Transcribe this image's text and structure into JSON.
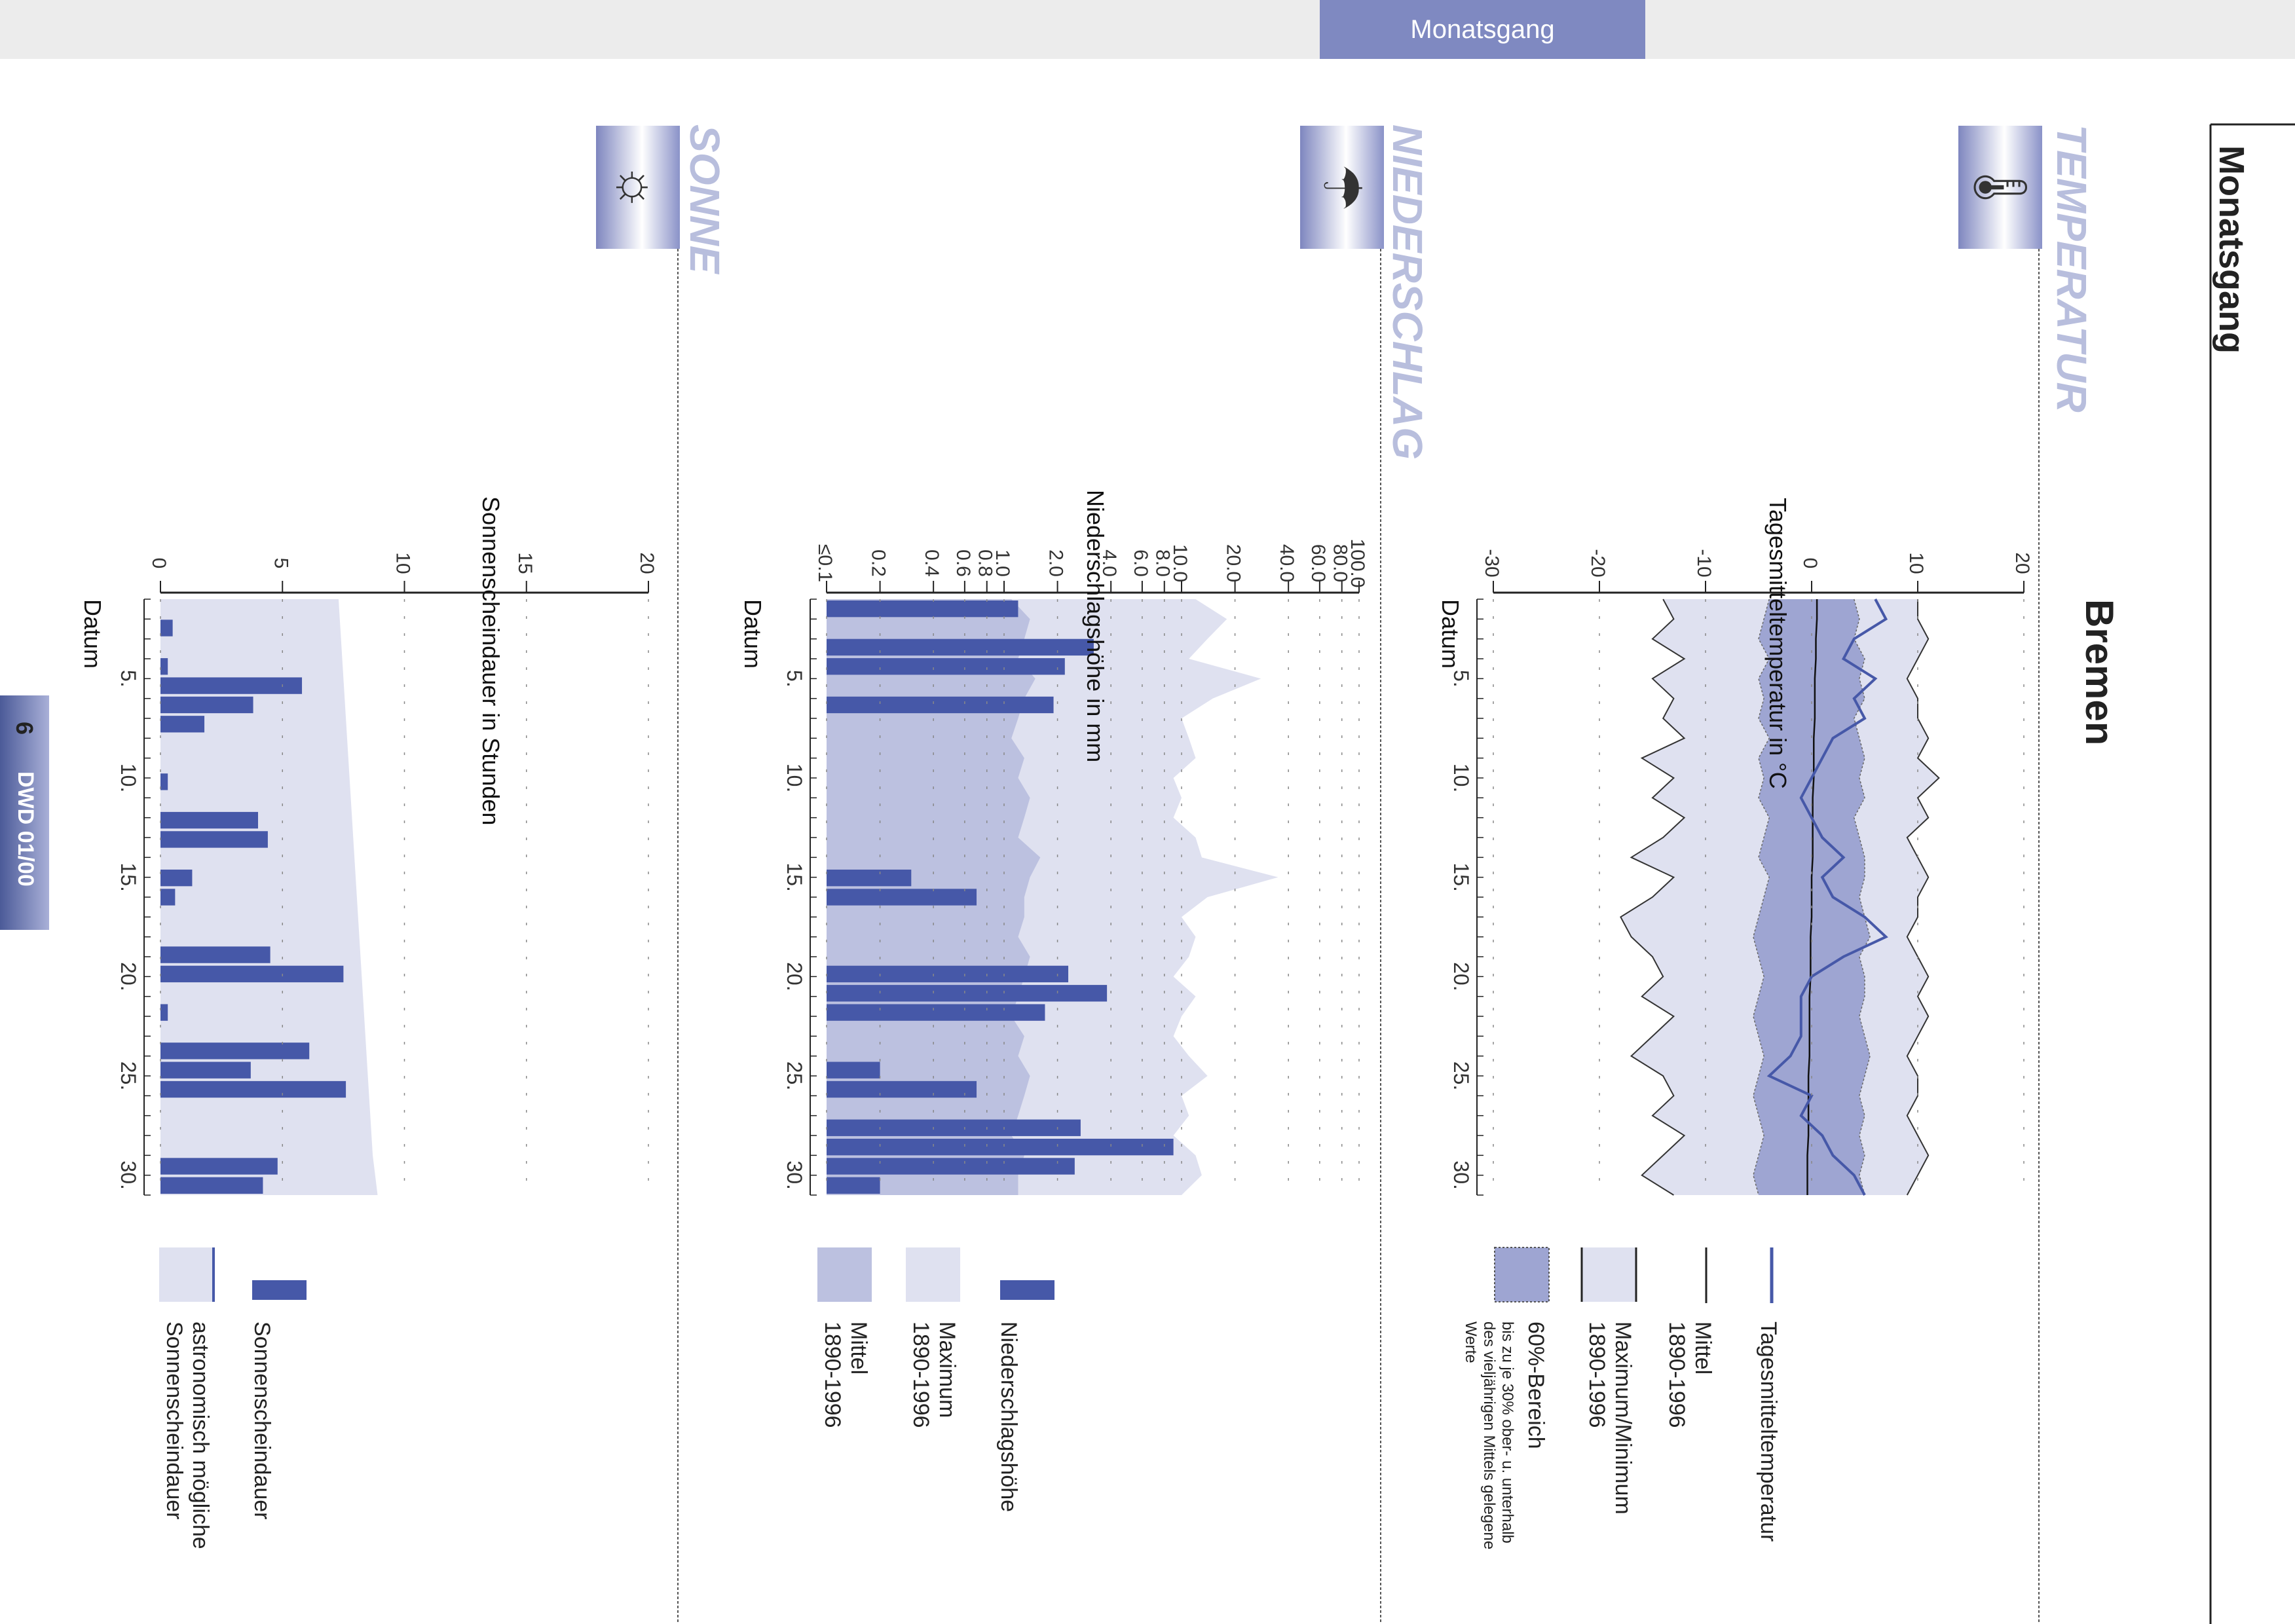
{
  "header": {
    "tab": "Monatsgang"
  },
  "page": {
    "title": "Monatsgang",
    "station": "Bremen"
  },
  "footer": {
    "page_number": "6",
    "label": "DWD  01/00"
  },
  "colors": {
    "series_dark": "#4658a8",
    "band_light": "#dfe1f0",
    "band_mid": "#bcc1e0",
    "band_dark": "#9ea5d2",
    "tab": "#7f89c1",
    "section_title": "#b8bedd"
  },
  "sections": {
    "temperatur": {
      "title": "TEMPERATUR",
      "icon": "thermometer-icon",
      "ylabel": "Tagesmitteltemperatur in °C",
      "xlabel": "Datum",
      "legend": {
        "tagesmittel": "Tagesmitteltemperatur",
        "mittel": "Mittel",
        "mittel_years": "1890-1996",
        "maxmin": "Maximum/Minimum",
        "maxmin_years": "1890-1996",
        "band": "60%-Bereich",
        "band_note1": "bis zu je 30% ober- u. unterhalb",
        "band_note2": "des vieljährigen Mittels gelegene",
        "band_note3": "Werte"
      }
    },
    "niederschlag": {
      "title": "NIEDERSCHLAG",
      "icon": "rain-cloud-icon",
      "ylabel": "Niederschlagshöhe in mm",
      "xlabel": "Datum",
      "legend": {
        "hoehe": "Niederschlagshöhe",
        "maximum": "Maximum",
        "maximum_years": "1890-1996",
        "mittel": "Mittel",
        "mittel_years": "1890-1996"
      }
    },
    "sonne": {
      "title": "SONNE",
      "icon": "sun-icon",
      "ylabel": "Sonnenscheindauer in Stunden",
      "xlabel": "Datum",
      "legend": {
        "dauer": "Sonnenscheindauer",
        "astro1": "astronomisch mögliche",
        "astro2": "Sonnenscheindauer"
      }
    }
  },
  "chart_data": [
    {
      "type": "line",
      "title": "Tagesmitteltemperatur in °C",
      "xlabel": "Datum",
      "ylabel": "",
      "x": [
        1,
        2,
        3,
        4,
        5,
        6,
        7,
        8,
        9,
        10,
        11,
        12,
        13,
        14,
        15,
        16,
        17,
        18,
        19,
        20,
        21,
        22,
        23,
        24,
        25,
        26,
        27,
        28,
        29,
        30,
        31
      ],
      "xticks": [
        5,
        10,
        15,
        20,
        25,
        30
      ],
      "xtick_labels": [
        "5.",
        "10.",
        "15.",
        "20.",
        "25.",
        "30."
      ],
      "ylim": [
        -30,
        20
      ],
      "yticks": [
        -30,
        -20,
        -10,
        0,
        10,
        20
      ],
      "grid": true,
      "series": [
        {
          "name": "Tagesmitteltemperatur",
          "values": [
            6,
            7,
            4,
            3,
            6,
            4,
            5,
            2,
            1,
            0,
            -1,
            0,
            1,
            3,
            1,
            2,
            5,
            7,
            3,
            0,
            -1,
            -1,
            -1,
            -2,
            -4,
            0,
            -1,
            1,
            2,
            4,
            5
          ]
        },
        {
          "name": "Mittel",
          "values": [
            0.5,
            0.5,
            0.4,
            0.4,
            0.3,
            0.3,
            0.3,
            0.2,
            0.2,
            0.2,
            0.1,
            0.1,
            0.1,
            0.1,
            0,
            0,
            0,
            -0.1,
            -0.1,
            -0.1,
            -0.2,
            -0.2,
            -0.2,
            -0.2,
            -0.3,
            -0.3,
            -0.3,
            -0.3,
            -0.4,
            -0.4,
            -0.4
          ]
        },
        {
          "name": "Maximum",
          "values": [
            10,
            10,
            11,
            10,
            9,
            10,
            10,
            11,
            10,
            12,
            10,
            11,
            9,
            10,
            11,
            10,
            10,
            9,
            10,
            11,
            10,
            11,
            10,
            9,
            10,
            10,
            9,
            10,
            11,
            10,
            9
          ]
        },
        {
          "name": "Minimum",
          "values": [
            -14,
            -13,
            -15,
            -12,
            -15,
            -13,
            -14,
            -12,
            -16,
            -13,
            -15,
            -12,
            -14,
            -17,
            -13,
            -15,
            -18,
            -17,
            -15,
            -14,
            -16,
            -13,
            -15,
            -17,
            -14,
            -13,
            -15,
            -12,
            -14,
            -16,
            -13
          ]
        },
        {
          "name": "60%-Bereich oben",
          "values": [
            4,
            4.5,
            4,
            5,
            4.5,
            5,
            4,
            4.5,
            5,
            4.5,
            5,
            4,
            4.5,
            5,
            5,
            4.5,
            5,
            5.5,
            4.5,
            5,
            5,
            4.5,
            5,
            5.5,
            5,
            4.5,
            5,
            4.5,
            5,
            4.5,
            5
          ]
        },
        {
          "name": "60%-Bereich unten",
          "values": [
            -4,
            -4.5,
            -5,
            -4,
            -5,
            -4.5,
            -5,
            -4,
            -5,
            -4.5,
            -5,
            -4,
            -4.5,
            -5,
            -4,
            -4.5,
            -5,
            -5.5,
            -5,
            -4.5,
            -5,
            -5.5,
            -5,
            -4.5,
            -5,
            -5.5,
            -5,
            -4.5,
            -5,
            -5.5,
            -5
          ]
        }
      ]
    },
    {
      "type": "bar",
      "title": "Niederschlagshöhe in mm",
      "xlabel": "Datum",
      "ylabel": "",
      "x": [
        1,
        2,
        3,
        4,
        5,
        6,
        7,
        8,
        9,
        10,
        11,
        12,
        13,
        14,
        15,
        16,
        17,
        18,
        19,
        20,
        21,
        22,
        23,
        24,
        25,
        26,
        27,
        28,
        29,
        30,
        31
      ],
      "xticks": [
        5,
        10,
        15,
        20,
        25,
        30
      ],
      "xtick_labels": [
        "5.",
        "10.",
        "15.",
        "20.",
        "25.",
        "30."
      ],
      "yscale": "log",
      "yticks": [
        0.1,
        0.2,
        0.4,
        0.6,
        0.8,
        1.0,
        2.0,
        4.0,
        6.0,
        8.0,
        10.0,
        20.0,
        40.0,
        60.0,
        80.0,
        100.0
      ],
      "ytick_labels": [
        "≤0.1",
        "0.2",
        "0.4",
        "0.6",
        "0.8",
        "1.0",
        "2.0",
        "4.0",
        "6.0",
        "8.0",
        "10.0",
        "20.0",
        "40.0",
        "60.0",
        "80.0",
        "100.0"
      ],
      "ylim": [
        0.1,
        100
      ],
      "grid": true,
      "series": [
        {
          "name": "Niederschlagshöhe",
          "values": [
            1.2,
            0,
            3.2,
            2.2,
            0,
            1.9,
            0,
            0,
            0,
            0,
            0,
            0,
            0,
            0,
            0.3,
            0.7,
            0,
            0,
            0,
            2.3,
            3.8,
            1.7,
            0,
            0,
            0.2,
            0.7,
            0,
            2.7,
            9.0,
            2.5,
            0.2
          ]
        },
        {
          "name": "Maximum",
          "values": [
            12,
            18,
            14,
            11,
            28,
            15,
            10,
            11,
            12,
            9,
            10,
            9,
            12,
            13,
            35,
            14,
            10,
            12,
            11,
            9,
            12,
            10,
            9,
            11,
            14,
            10,
            11,
            9,
            12,
            13,
            10
          ]
        },
        {
          "name": "Mittel",
          "values": [
            1.1,
            1.4,
            1.3,
            1.2,
            1.5,
            1.3,
            1.2,
            1.1,
            1.3,
            1.2,
            1.4,
            1.3,
            1.2,
            1.6,
            1.4,
            1.3,
            1.3,
            1.2,
            1.4,
            1.3,
            1.2,
            1.1,
            1.3,
            1.2,
            1.4,
            1.3,
            1.2,
            1.1,
            1.3,
            1.2,
            1.2
          ]
        }
      ]
    },
    {
      "type": "bar",
      "title": "Sonnenscheindauer in Stunden",
      "xlabel": "Datum",
      "ylabel": "",
      "x": [
        1,
        2,
        3,
        4,
        5,
        6,
        7,
        8,
        9,
        10,
        11,
        12,
        13,
        14,
        15,
        16,
        17,
        18,
        19,
        20,
        21,
        22,
        23,
        24,
        25,
        26,
        27,
        28,
        29,
        30,
        31
      ],
      "xticks": [
        5,
        10,
        15,
        20,
        25,
        30
      ],
      "xtick_labels": [
        "5.",
        "10.",
        "15.",
        "20.",
        "25.",
        "30."
      ],
      "ylim": [
        0,
        20
      ],
      "yticks": [
        0,
        5,
        10,
        15,
        20
      ],
      "grid": true,
      "series": [
        {
          "name": "Sonnenscheindauer",
          "values": [
            0,
            0.5,
            0,
            0.3,
            5.8,
            3.8,
            1.8,
            0,
            0,
            0.3,
            0,
            4.0,
            4.4,
            0,
            1.3,
            0.6,
            0,
            0,
            4.5,
            7.5,
            0,
            0.3,
            0,
            6.1,
            3.7,
            7.6,
            0,
            0,
            0,
            4.8,
            4.2
          ]
        },
        {
          "name": "astronomisch mögliche Sonnenscheindauer",
          "values": [
            7.3,
            7.35,
            7.4,
            7.45,
            7.5,
            7.55,
            7.6,
            7.65,
            7.7,
            7.75,
            7.8,
            7.85,
            7.9,
            7.95,
            8.0,
            8.05,
            8.1,
            8.15,
            8.2,
            8.25,
            8.3,
            8.35,
            8.4,
            8.45,
            8.5,
            8.55,
            8.6,
            8.65,
            8.7,
            8.8,
            8.9
          ]
        }
      ]
    }
  ]
}
